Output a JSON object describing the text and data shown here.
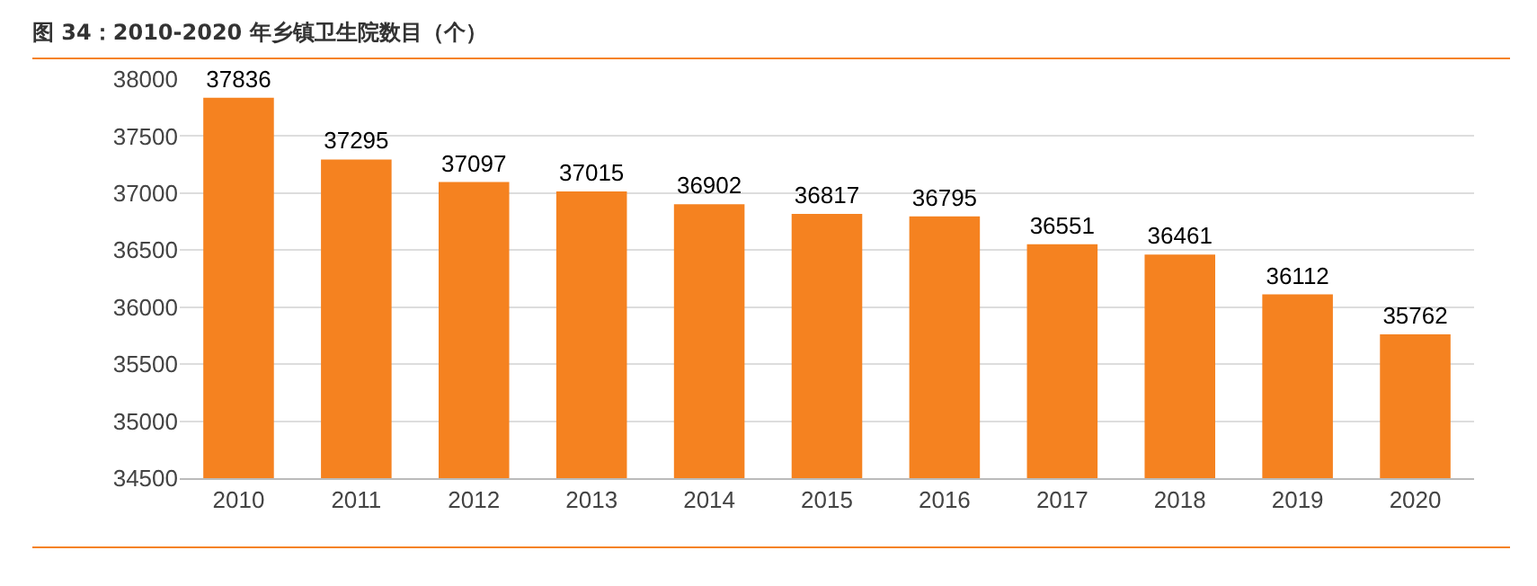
{
  "chart_data": {
    "type": "bar",
    "title": "图 34：2010-2020 年乡镇卫生院数目（个）",
    "categories": [
      "2010",
      "2011",
      "2012",
      "2013",
      "2014",
      "2015",
      "2016",
      "2017",
      "2018",
      "2019",
      "2020"
    ],
    "values": [
      37836,
      37295,
      37097,
      37015,
      36902,
      36817,
      36795,
      36551,
      36461,
      36112,
      35762
    ],
    "color": "#f58220",
    "ylim": [
      34500,
      38000
    ],
    "yticks": [
      34500,
      35000,
      35500,
      36000,
      36500,
      37000,
      37500,
      38000
    ],
    "grid": "y",
    "data_labels": true
  }
}
